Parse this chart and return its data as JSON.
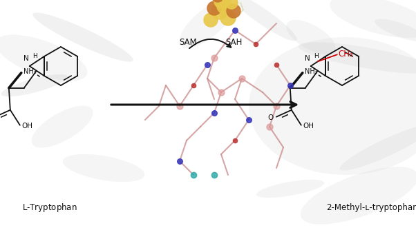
{
  "fig_width": 6.02,
  "fig_height": 3.34,
  "dpi": 100,
  "bg_color": "#ffffff",
  "label_left": "L-Tryptophan",
  "label_right": "2-Methyl-ʟ-tryptophan",
  "label_sam": "SAM",
  "label_sah": "SAH",
  "label_ch3_color": "#cc0000",
  "arrow_color": "#111111",
  "struct_color": "#111111",
  "protein_bg": "#e0e0e0",
  "sam_yellow": "#d4b44a",
  "sam_orange": "#b8762a",
  "stick_color": "#c88888",
  "blue_color": "#3333bb",
  "teal_color": "#33aaaa",
  "red_color": "#bb3333"
}
